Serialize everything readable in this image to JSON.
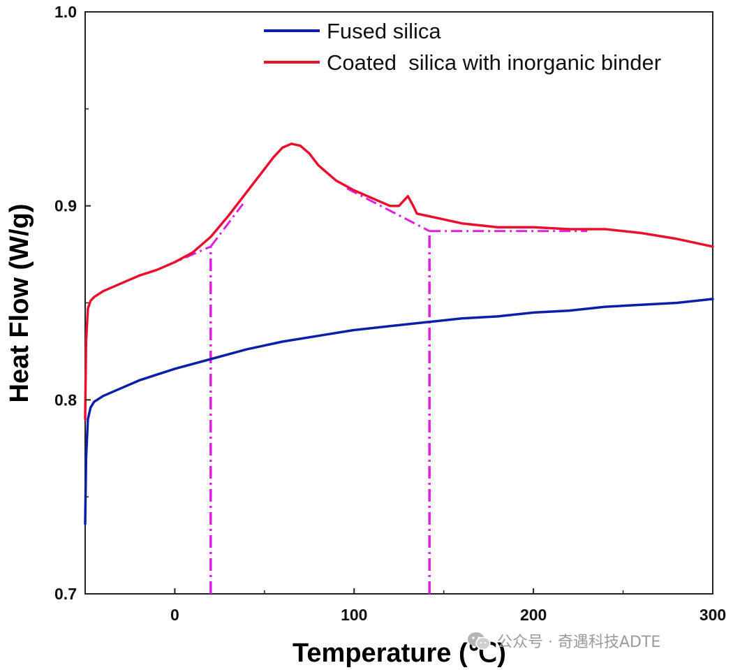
{
  "chart_data": {
    "type": "line",
    "xlabel": "Temperature (℃)",
    "ylabel": "Heat Flow (W/g)",
    "xlim": [
      -50,
      300
    ],
    "ylim": [
      0.7,
      1.0
    ],
    "xticks": [
      0,
      100,
      200,
      300
    ],
    "xtick_labels": [
      "0",
      "100",
      "200",
      "300"
    ],
    "yticks": [
      0.7,
      0.8,
      0.9,
      1.0
    ],
    "ytick_labels": [
      "0.7",
      "0.8",
      "0.9",
      "1.0"
    ],
    "grid": false,
    "legend_position": "top-right",
    "series": [
      {
        "name": "Fused silica",
        "color": "#0b1fa8",
        "x": [
          -50,
          -49.5,
          -48.5,
          -47,
          -45,
          -40,
          -30,
          -20,
          -10,
          0,
          20,
          40,
          60,
          80,
          100,
          120,
          140,
          160,
          180,
          200,
          220,
          240,
          260,
          280,
          300
        ],
        "y": [
          0.736,
          0.77,
          0.79,
          0.796,
          0.799,
          0.802,
          0.806,
          0.81,
          0.813,
          0.816,
          0.821,
          0.826,
          0.83,
          0.833,
          0.836,
          0.838,
          0.84,
          0.842,
          0.843,
          0.845,
          0.846,
          0.848,
          0.849,
          0.85,
          0.852
        ]
      },
      {
        "name": "Coated  silica with inorganic binder",
        "color": "#e8102e",
        "x": [
          -50,
          -49.5,
          -48.5,
          -47,
          -45,
          -40,
          -30,
          -20,
          -10,
          0,
          10,
          20,
          30,
          40,
          50,
          55,
          60,
          65,
          70,
          75,
          80,
          90,
          100,
          110,
          120,
          125,
          128,
          130,
          133,
          135,
          140,
          150,
          160,
          180,
          200,
          220,
          240,
          260,
          280,
          300
        ],
        "y": [
          0.79,
          0.83,
          0.847,
          0.851,
          0.853,
          0.856,
          0.86,
          0.864,
          0.867,
          0.871,
          0.876,
          0.884,
          0.895,
          0.907,
          0.919,
          0.925,
          0.93,
          0.932,
          0.931,
          0.927,
          0.921,
          0.913,
          0.908,
          0.904,
          0.9,
          0.9,
          0.903,
          0.905,
          0.9,
          0.896,
          0.895,
          0.893,
          0.891,
          0.889,
          0.889,
          0.888,
          0.888,
          0.886,
          0.883,
          0.879
        ]
      }
    ],
    "annotations": [
      {
        "kind": "tangent-lines",
        "color": "#e020e0",
        "segments": [
          {
            "x": [
              -5,
              20
            ],
            "y": [
              0.869,
              0.879
            ]
          },
          {
            "x": [
              20,
              38
            ],
            "y": [
              0.879,
              0.901
            ]
          },
          {
            "x": [
              96,
              142
            ],
            "y": [
              0.909,
              0.887
            ]
          },
          {
            "x": [
              142,
              230
            ],
            "y": [
              0.887,
              0.887
            ]
          }
        ]
      },
      {
        "kind": "vertical-lines",
        "color": "#e020e0",
        "lines": [
          {
            "x": 20,
            "y": [
              0.7,
              0.879
            ]
          },
          {
            "x": 142,
            "y": [
              0.7,
              0.887
            ]
          }
        ]
      }
    ]
  },
  "watermark": {
    "icon": "wechat-icon",
    "text": "公众号 · 奇遇科技ADTE"
  }
}
